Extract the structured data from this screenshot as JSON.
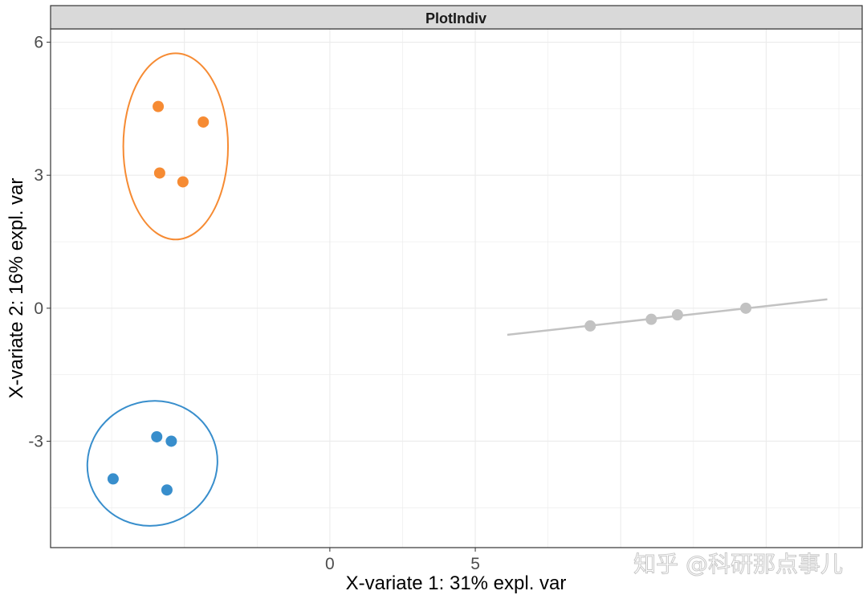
{
  "chart_data": {
    "type": "scatter",
    "title": "PlotIndiv",
    "xlabel": "X-variate 1: 31% expl. var",
    "ylabel": "X-variate 2: 16% expl. var",
    "xlim": [
      -9.6,
      18.3
    ],
    "ylim": [
      -5.4,
      6.3
    ],
    "x_ticks": [
      0,
      5
    ],
    "x_tick_labels": [
      "0",
      "5"
    ],
    "y_ticks": [
      -3,
      0,
      3,
      6
    ],
    "y_tick_labels": [
      "-3",
      "0",
      "3",
      "6"
    ],
    "grid": true,
    "legend": "none",
    "series": [
      {
        "color": "#F68B33",
        "points": [
          [
            -5.9,
            4.55
          ],
          [
            -4.35,
            4.2
          ],
          [
            -5.85,
            3.05
          ],
          [
            -5.05,
            2.85
          ]
        ],
        "ellipse": {
          "center": [
            -5.3,
            3.65
          ],
          "rx": 1.8,
          "ry": 2.1,
          "angle": 0
        }
      },
      {
        "color": "#388ECC",
        "points": [
          [
            -7.45,
            -3.85
          ],
          [
            -5.95,
            -2.9
          ],
          [
            -5.45,
            -3.0
          ],
          [
            -5.6,
            -4.1
          ]
        ],
        "ellipse": {
          "center": [
            -6.1,
            -3.5
          ],
          "rx": 2.25,
          "ry": 1.4,
          "angle": -20
        }
      },
      {
        "color": "#C2C2C2",
        "points": [
          [
            8.95,
            -0.4
          ],
          [
            11.05,
            -0.25
          ],
          [
            11.95,
            -0.15
          ],
          [
            14.3,
            0.0
          ]
        ],
        "line": [
          [
            6.1,
            -0.6
          ],
          [
            17.1,
            0.2
          ]
        ]
      }
    ]
  },
  "watermark": "知乎 @科研那点事儿"
}
